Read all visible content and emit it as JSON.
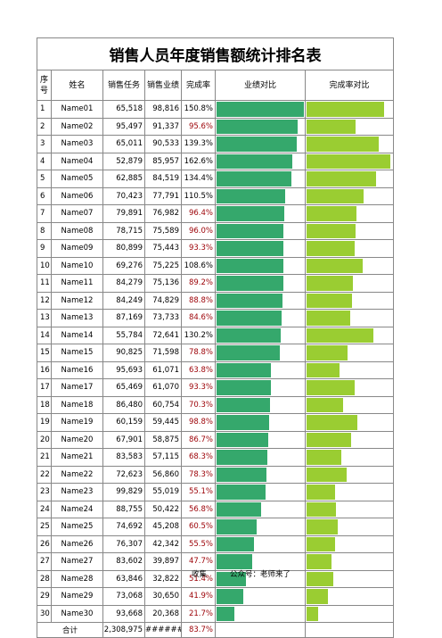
{
  "title": "销售人员年度销售额统计排名表",
  "table": {
    "header": [
      "序号",
      "姓名",
      "销售任务",
      "销售业绩",
      "完成率",
      "业绩对比",
      "完成率对比"
    ],
    "rows": [
      [
        1,
        "Name01",
        "65,518",
        {
          "value": 98816,
          "label": "98,816"
        },
        {
          "value": 150.8,
          "label": "150.8%"
        }
      ],
      [
        2,
        "Name02",
        "95,497",
        {
          "value": 91337,
          "label": "91,337"
        },
        {
          "value": 95.6,
          "label": "95.6%"
        }
      ],
      [
        3,
        "Name03",
        "65,011",
        {
          "value": 90533,
          "label": "90,533"
        },
        {
          "value": 139.3,
          "label": "139.3%"
        }
      ],
      [
        4,
        "Name04",
        "52,879",
        {
          "value": 85957,
          "label": "85,957"
        },
        {
          "value": 162.6,
          "label": "162.6%"
        }
      ],
      [
        5,
        "Name05",
        "62,885",
        {
          "value": 84519,
          "label": "84,519"
        },
        {
          "value": 134.4,
          "label": "134.4%"
        }
      ],
      [
        6,
        "Name06",
        "70,423",
        {
          "value": 77791,
          "label": "77,791"
        },
        {
          "value": 110.5,
          "label": "110.5%"
        }
      ],
      [
        7,
        "Name07",
        "79,891",
        {
          "value": 76982,
          "label": "76,982"
        },
        {
          "value": 96.4,
          "label": "96.4%"
        }
      ],
      [
        8,
        "Name08",
        "78,715",
        {
          "value": 75589,
          "label": "75,589"
        },
        {
          "value": 96.0,
          "label": "96.0%"
        }
      ],
      [
        9,
        "Name09",
        "80,899",
        {
          "value": 75443,
          "label": "75,443"
        },
        {
          "value": 93.3,
          "label": "93.3%"
        }
      ],
      [
        10,
        "Name10",
        "69,276",
        {
          "value": 75225,
          "label": "75,225"
        },
        {
          "value": 108.6,
          "label": "108.6%"
        }
      ],
      [
        11,
        "Name11",
        "84,279",
        {
          "value": 75136,
          "label": "75,136"
        },
        {
          "value": 89.2,
          "label": "89.2%"
        }
      ],
      [
        12,
        "Name12",
        "84,249",
        {
          "value": 74829,
          "label": "74,829"
        },
        {
          "value": 88.8,
          "label": "88.8%"
        }
      ],
      [
        13,
        "Name13",
        "87,169",
        {
          "value": 73733,
          "label": "73,733"
        },
        {
          "value": 84.6,
          "label": "84.6%"
        }
      ],
      [
        14,
        "Name14",
        "55,784",
        {
          "value": 72641,
          "label": "72,641"
        },
        {
          "value": 130.2,
          "label": "130.2%"
        }
      ],
      [
        15,
        "Name15",
        "90,825",
        {
          "value": 71598,
          "label": "71,598"
        },
        {
          "value": 78.8,
          "label": "78.8%"
        }
      ],
      [
        16,
        "Name16",
        "95,693",
        {
          "value": 61071,
          "label": "61,071"
        },
        {
          "value": 63.8,
          "label": "63.8%"
        }
      ],
      [
        17,
        "Name17",
        "65,469",
        {
          "value": 61070,
          "label": "61,070"
        },
        {
          "value": 93.3,
          "label": "93.3%"
        }
      ],
      [
        18,
        "Name18",
        "86,480",
        {
          "value": 60754,
          "label": "60,754"
        },
        {
          "value": 70.3,
          "label": "70.3%"
        }
      ],
      [
        19,
        "Name19",
        "60,159",
        {
          "value": 59445,
          "label": "59,445"
        },
        {
          "value": 98.8,
          "label": "98.8%"
        }
      ],
      [
        20,
        "Name20",
        "67,901",
        {
          "value": 58875,
          "label": "58,875"
        },
        {
          "value": 86.7,
          "label": "86.7%"
        }
      ],
      [
        21,
        "Name21",
        "83,583",
        {
          "value": 57115,
          "label": "57,115"
        },
        {
          "value": 68.3,
          "label": "68.3%"
        }
      ],
      [
        22,
        "Name22",
        "72,623",
        {
          "value": 56860,
          "label": "56,860"
        },
        {
          "value": 78.3,
          "label": "78.3%"
        }
      ],
      [
        23,
        "Name23",
        "99,829",
        {
          "value": 55019,
          "label": "55,019"
        },
        {
          "value": 55.1,
          "label": "55.1%"
        }
      ],
      [
        24,
        "Name24",
        "88,755",
        {
          "value": 50422,
          "label": "50,422"
        },
        {
          "value": 56.8,
          "label": "56.8%"
        }
      ],
      [
        25,
        "Name25",
        "74,692",
        {
          "value": 45208,
          "label": "45,208"
        },
        {
          "value": 60.5,
          "label": "60.5%"
        }
      ],
      [
        26,
        "Name26",
        "76,307",
        {
          "value": 42342,
          "label": "42,342"
        },
        {
          "value": 55.5,
          "label": "55.5%"
        }
      ],
      [
        27,
        "Name27",
        "83,602",
        {
          "value": 39897,
          "label": "39,897"
        },
        {
          "value": 47.7,
          "label": "47.7%"
        }
      ],
      [
        28,
        "Name28",
        "63,846",
        {
          "value": 32822,
          "label": "32,822"
        },
        {
          "value": 51.4,
          "label": "51.4%"
        }
      ],
      [
        29,
        "Name29",
        "73,068",
        {
          "value": 30650,
          "label": "30,650"
        },
        {
          "value": 41.9,
          "label": "41.9%"
        }
      ],
      [
        30,
        "Name30",
        "93,668",
        {
          "value": 20368,
          "label": "20,368"
        },
        {
          "value": 21.7,
          "label": "21.7%"
        }
      ]
    ],
    "total": [
      "合计",
      "2,308,975",
      "#######",
      "83.7%"
    ],
    "colors": {
      "sales_bar": "#35a86c",
      "rate_bar": "#9acd32",
      "under_target": "#9c0006"
    }
  },
  "footer": [
    "收集",
    "公众号：老师来了"
  ]
}
